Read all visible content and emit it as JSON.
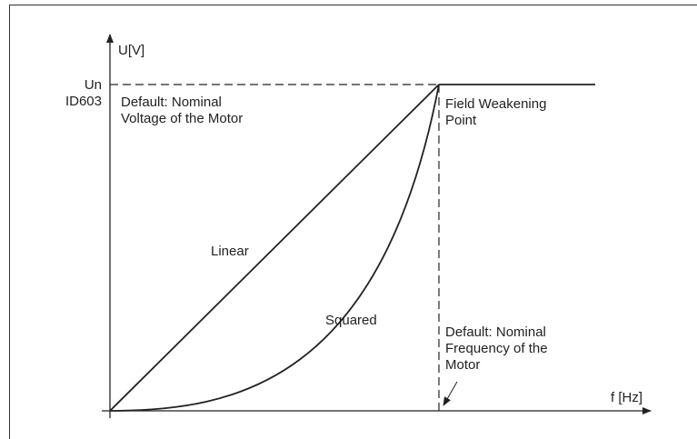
{
  "axes": {
    "y_label": "U[V]",
    "x_label": "f [Hz]"
  },
  "y_marks": {
    "nominal": "Un",
    "parameter": "ID603"
  },
  "voltage_note": [
    "Default: Nominal",
    "Voltage of the Motor"
  ],
  "field_weakening_note": [
    "Field Weakening",
    "Point"
  ],
  "curves": {
    "linear": "Linear",
    "squared": "Squared"
  },
  "frequency_note": [
    "Default: Nominal",
    "Frequency of the",
    "Motor"
  ]
}
